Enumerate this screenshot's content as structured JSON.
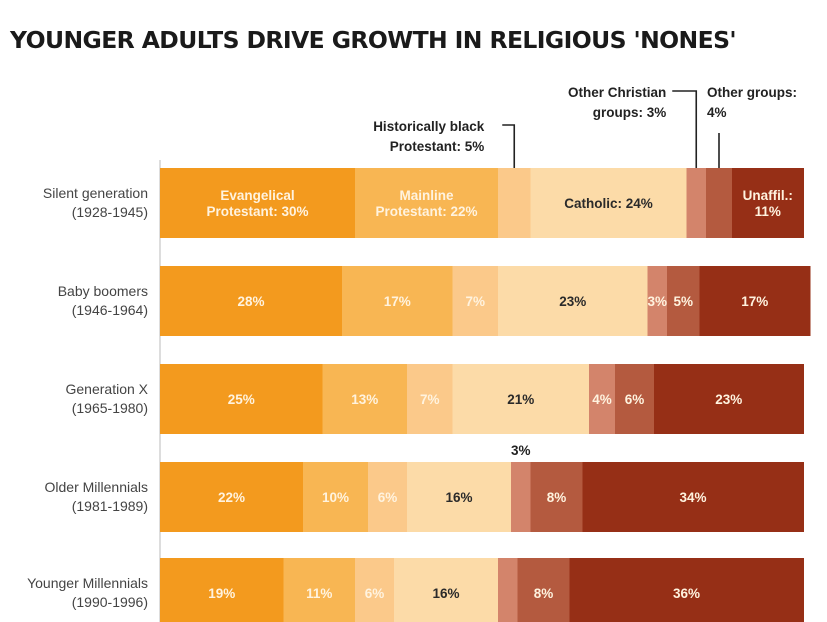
{
  "chart_data": {
    "type": "bar",
    "orientation": "horizontal",
    "stacked": true,
    "title": "YOUNGER ADULTS DRIVE GROWTH IN RELIGIOUS 'NONES'",
    "categories": [
      {
        "name": "Silent generation",
        "years": "(1928-1945)"
      },
      {
        "name": "Baby boomers",
        "years": "(1946-1964)"
      },
      {
        "name": "Generation X",
        "years": "(1965-1980)"
      },
      {
        "name": "Older Millennials",
        "years": "(1981-1989)"
      },
      {
        "name": "Younger Millennials",
        "years": "(1990-1996)"
      }
    ],
    "series": [
      {
        "name": "Evangelical Protestant",
        "color": "#f39a1e",
        "text_color": "#fff3df",
        "values": [
          30,
          28,
          25,
          22,
          19
        ]
      },
      {
        "name": "Mainline Protestant",
        "color": "#f8b653",
        "text_color": "#fff3df",
        "values": [
          22,
          17,
          13,
          10,
          11
        ]
      },
      {
        "name": "Historically black Protestant",
        "color": "#fbc98a",
        "text_color": "#fff3df",
        "values": [
          5,
          7,
          7,
          6,
          6
        ]
      },
      {
        "name": "Catholic",
        "color": "#fcdba8",
        "text_color": "#2a2a2a",
        "values": [
          24,
          23,
          21,
          16,
          16
        ]
      },
      {
        "name": "Other Christian groups",
        "color": "#d3846b",
        "text_color": "#fff3df",
        "values": [
          3,
          3,
          4,
          3,
          3
        ]
      },
      {
        "name": "Other groups",
        "color": "#b45a3f",
        "text_color": "#fff3df",
        "values": [
          4,
          5,
          6,
          8,
          8
        ]
      },
      {
        "name": "Unaffil.",
        "color": "#962f16",
        "text_color": "#fff3df",
        "values": [
          11,
          17,
          23,
          34,
          36
        ]
      }
    ],
    "segment_labels": [
      [
        [
          "Evangelical",
          "Protestant: 30%"
        ],
        [
          "Mainline",
          "Protestant: 22%"
        ],
        [],
        [
          "Catholic: 24%"
        ],
        [],
        [],
        [
          "Unaffil.:",
          "11%"
        ]
      ],
      [
        [
          "28%"
        ],
        [
          "17%"
        ],
        [
          "7%"
        ],
        [
          "23%"
        ],
        [
          "3%"
        ],
        [
          "5%"
        ],
        [
          "17%"
        ]
      ],
      [
        [
          "25%"
        ],
        [
          "13%"
        ],
        [
          "7%"
        ],
        [
          "21%"
        ],
        [
          "4%"
        ],
        [
          "6%"
        ],
        [
          "23%"
        ]
      ],
      [
        [
          "22%"
        ],
        [
          "10%"
        ],
        [
          "6%"
        ],
        [
          "16%"
        ],
        [],
        [
          "8%"
        ],
        [
          "34%"
        ]
      ],
      [
        [
          "19%"
        ],
        [
          "11%"
        ],
        [
          "6%"
        ],
        [
          "16%"
        ],
        [],
        [
          "8%"
        ],
        [
          "36%"
        ]
      ]
    ],
    "annotations": [
      {
        "lines": [
          "Historically black",
          "Protestant: 5%"
        ],
        "series": 2,
        "row": 0
      },
      {
        "lines": [
          "Other Christian",
          "groups: 3%"
        ],
        "series": 4,
        "row": 0
      },
      {
        "lines": [
          "Other groups:",
          "4%"
        ],
        "series": 5,
        "row": 0
      },
      {
        "lines": [
          "3%"
        ],
        "series": 4,
        "row": 3
      }
    ],
    "xlim": [
      0,
      100
    ],
    "legend": "none",
    "grid": false
  }
}
